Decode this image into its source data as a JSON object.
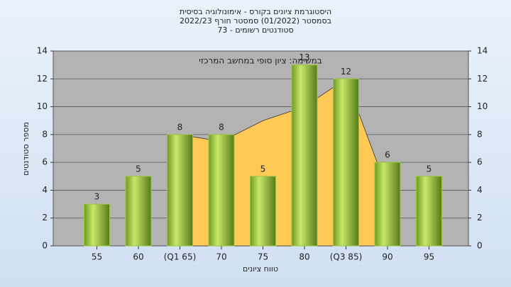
{
  "chart_data": {
    "type": "bar",
    "title": "היסטוגרמת ציונים בקורס - אימונולוגיה בסיסית",
    "subtitle": [
      "בסמסטר  (01/2022)  סמסטר חורף 2022/23",
      "סטודנטים רשומים - 73"
    ],
    "annotation": "במשימה: ציון סופי במחשב המרכזי",
    "x_label": "טווח ציונים",
    "y_label": "מספר סטודנטים",
    "categories": [
      "55",
      "60",
      "(Q1 65)",
      "70",
      "75",
      "80",
      "(Q3 85)",
      "90",
      "95"
    ],
    "values": [
      3,
      5,
      8,
      8,
      5,
      13,
      12,
      6,
      5
    ],
    "color": "#9cc840",
    "area": {
      "values": [
        null,
        null,
        8,
        7.5,
        9,
        10,
        12,
        4,
        null
      ],
      "color": "#ffc955"
    },
    "ylim": [
      0,
      14
    ],
    "yticks": [
      0,
      2,
      4,
      6,
      8,
      10,
      12,
      14
    ],
    "y2lim": [
      0,
      14
    ],
    "y2ticks": [
      0,
      2,
      4,
      6,
      8,
      10,
      12,
      14
    ],
    "grid": true
  }
}
